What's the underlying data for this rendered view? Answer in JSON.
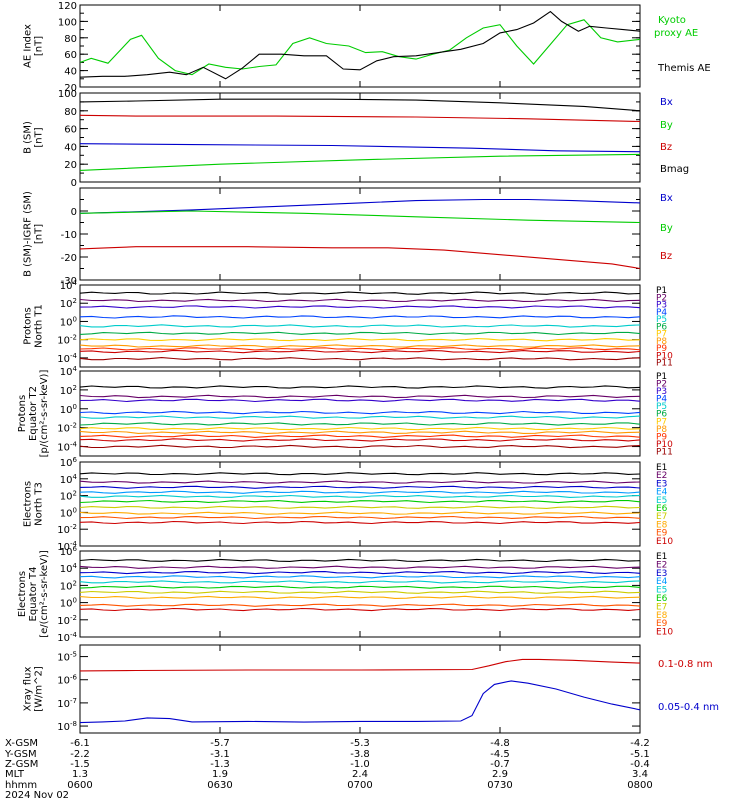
{
  "chart_data": [
    {
      "type": "line",
      "ylabel": [
        "AE Index",
        "[nT]"
      ],
      "ylim": [
        20,
        120
      ],
      "yticks": [
        20,
        40,
        60,
        80,
        100,
        120
      ],
      "series": [
        {
          "name": "Kyoto proxy AE",
          "legend": [
            "Kyoto",
            "proxy AE"
          ],
          "color": "#00cc00",
          "x": [
            0,
            0.02,
            0.05,
            0.09,
            0.11,
            0.14,
            0.17,
            0.2,
            0.23,
            0.26,
            0.29,
            0.32,
            0.35,
            0.38,
            0.41,
            0.44,
            0.48,
            0.51,
            0.54,
            0.57,
            0.6,
            0.63,
            0.66,
            0.69,
            0.72,
            0.75,
            0.78,
            0.81,
            0.84,
            0.87,
            0.9,
            0.93,
            0.96,
            1
          ],
          "y": [
            50,
            55,
            49,
            78,
            83,
            55,
            40,
            35,
            48,
            44,
            42,
            45,
            47,
            73,
            80,
            73,
            70,
            62,
            63,
            57,
            54,
            60,
            65,
            80,
            92,
            96,
            70,
            48,
            72,
            96,
            102,
            80,
            75,
            78
          ]
        },
        {
          "name": "Themis AE",
          "color": "#000000",
          "x": [
            0,
            0.04,
            0.08,
            0.12,
            0.16,
            0.19,
            0.22,
            0.26,
            0.29,
            0.32,
            0.36,
            0.4,
            0.44,
            0.47,
            0.5,
            0.53,
            0.56,
            0.6,
            0.64,
            0.68,
            0.72,
            0.75,
            0.78,
            0.81,
            0.84,
            0.86,
            0.89,
            0.91,
            0.94,
            0.97,
            1
          ],
          "y": [
            32,
            33,
            33,
            35,
            38,
            35,
            44,
            30,
            43,
            60,
            60,
            58,
            58,
            42,
            41,
            52,
            57,
            58,
            62,
            66,
            73,
            86,
            90,
            98,
            112,
            100,
            88,
            94,
            92,
            90,
            88
          ]
        }
      ]
    },
    {
      "type": "line",
      "ylabel": [
        "B (SM)",
        "[nT]"
      ],
      "ylim": [
        0,
        100
      ],
      "yticks": [
        0,
        20,
        40,
        60,
        80,
        100
      ],
      "series": [
        {
          "name": "Bx",
          "color": "#0000cc",
          "x": [
            0,
            0.2,
            0.45,
            0.7,
            0.85,
            1
          ],
          "y": [
            43,
            42,
            41,
            38,
            35,
            34
          ]
        },
        {
          "name": "By",
          "color": "#00cc00",
          "x": [
            0,
            0.25,
            0.5,
            0.75,
            1
          ],
          "y": [
            13,
            20,
            25,
            29,
            31
          ]
        },
        {
          "name": "Bz",
          "color": "#cc0000",
          "x": [
            0,
            0.1,
            0.35,
            0.6,
            0.8,
            1
          ],
          "y": [
            75,
            74,
            74,
            73,
            71,
            68
          ]
        },
        {
          "name": "Bmag",
          "color": "#000000",
          "x": [
            0,
            0.1,
            0.25,
            0.45,
            0.6,
            0.75,
            0.9,
            1
          ],
          "y": [
            90,
            91,
            93,
            93,
            92,
            89,
            85,
            80
          ]
        }
      ]
    },
    {
      "type": "line",
      "ylabel": [
        "B (SM)-IGRF (SM)",
        "[nT]"
      ],
      "ylim": [
        -30,
        10
      ],
      "yticks": [
        -30,
        -20,
        -10,
        0
      ],
      "series": [
        {
          "name": "Bx",
          "color": "#0000cc",
          "x": [
            0,
            0.08,
            0.2,
            0.35,
            0.5,
            0.6,
            0.72,
            0.8,
            0.88,
            1
          ],
          "y": [
            -1,
            -0.5,
            0.5,
            2,
            3.5,
            4.5,
            5,
            5,
            4.5,
            3.5
          ]
        },
        {
          "name": "By",
          "color": "#00cc00",
          "x": [
            0,
            0.2,
            0.4,
            0.6,
            0.8,
            1
          ],
          "y": [
            -1,
            0,
            -1,
            -2.5,
            -4,
            -5
          ]
        },
        {
          "name": "Bz",
          "color": "#cc0000",
          "x": [
            0,
            0.05,
            0.1,
            0.3,
            0.45,
            0.55,
            0.65,
            0.75,
            0.85,
            0.95,
            1
          ],
          "y": [
            -16.5,
            -16,
            -15.5,
            -15.5,
            -16,
            -16,
            -17,
            -19,
            -21,
            -23,
            -25
          ]
        }
      ]
    },
    {
      "type": "line",
      "ylabel": [
        "Protons",
        "North T1"
      ],
      "ylim_log10": [
        -5,
        4
      ],
      "yticks_log10": [
        -4,
        -2,
        0,
        2,
        4
      ],
      "series": [
        {
          "name": "P1",
          "color": "#000000",
          "log10": 3.1
        },
        {
          "name": "P2",
          "color": "#660066",
          "log10": 2.3
        },
        {
          "name": "P3",
          "color": "#3300cc",
          "log10": 1.6
        },
        {
          "name": "P4",
          "color": "#0044ff",
          "log10": 0.5
        },
        {
          "name": "P5",
          "color": "#00cccc",
          "log10": -0.5
        },
        {
          "name": "P6",
          "color": "#00aa44",
          "log10": -1.3
        },
        {
          "name": "P7",
          "color": "#ffcc00",
          "log10": -2.0
        },
        {
          "name": "P8",
          "color": "#ff9900",
          "log10": -2.7
        },
        {
          "name": "P9",
          "color": "#ff3300",
          "log10": -3.0
        },
        {
          "name": "P10",
          "color": "#cc0000",
          "log10": -3.3
        },
        {
          "name": "P11",
          "color": "#990000",
          "log10": -4.1
        }
      ]
    },
    {
      "type": "line",
      "ylabel": [
        "Protons",
        "Equator T2",
        "[p/(cm²-s-sr-keV)]"
      ],
      "ylim_log10": [
        -5,
        4
      ],
      "yticks_log10": [
        -4,
        -2,
        0,
        2,
        4
      ],
      "series": [
        {
          "name": "P1",
          "color": "#000000",
          "log10": 2.3
        },
        {
          "name": "P2",
          "color": "#660066",
          "log10": 1.3
        },
        {
          "name": "P3",
          "color": "#3300cc",
          "log10": 0.9
        },
        {
          "name": "P4",
          "color": "#0044ff",
          "log10": -0.4
        },
        {
          "name": "P5",
          "color": "#00cccc",
          "log10": -0.9
        },
        {
          "name": "P6",
          "color": "#00aa44",
          "log10": -1.6
        },
        {
          "name": "P7",
          "color": "#ffcc00",
          "log10": -2.1
        },
        {
          "name": "P8",
          "color": "#ff9900",
          "log10": -2.5
        },
        {
          "name": "P9",
          "color": "#ff3300",
          "log10": -2.9
        },
        {
          "name": "P10",
          "color": "#cc0000",
          "log10": -3.3
        },
        {
          "name": "P11",
          "color": "#990000",
          "log10": -4.0
        }
      ]
    },
    {
      "type": "line",
      "ylabel": [
        "Electrons",
        "North T3"
      ],
      "ylim_log10": [
        -4,
        6
      ],
      "yticks_log10": [
        -4,
        -2,
        0,
        2,
        4,
        6
      ],
      "series": [
        {
          "name": "E1",
          "color": "#000000",
          "log10": 4.6
        },
        {
          "name": "E2",
          "color": "#660066",
          "log10": 3.6
        },
        {
          "name": "E3",
          "color": "#0000cc",
          "log10": 3.0
        },
        {
          "name": "E4",
          "color": "#0099ff",
          "log10": 2.4
        },
        {
          "name": "E5",
          "color": "#00cccc",
          "log10": 1.9
        },
        {
          "name": "E6",
          "color": "#00cc00",
          "log10": 1.3
        },
        {
          "name": "E7",
          "color": "#cccc00",
          "log10": 0.6
        },
        {
          "name": "E8",
          "color": "#ffaa00",
          "log10": -0.1
        },
        {
          "name": "E9",
          "color": "#ff5500",
          "log10": -0.6
        },
        {
          "name": "E10",
          "color": "#cc0000",
          "log10": -1.2
        }
      ]
    },
    {
      "type": "line",
      "ylabel": [
        "Electrons",
        "Equator T4",
        "[e/(cm²-s-sr-keV)]"
      ],
      "ylim_log10": [
        -4,
        6
      ],
      "yticks_log10": [
        -4,
        -2,
        0,
        2,
        4,
        6
      ],
      "series": [
        {
          "name": "E1",
          "color": "#000000",
          "log10": 4.9
        },
        {
          "name": "E2",
          "color": "#660066",
          "log10": 4.1
        },
        {
          "name": "E3",
          "color": "#0000cc",
          "log10": 3.5
        },
        {
          "name": "E4",
          "color": "#0099ff",
          "log10": 3.0
        },
        {
          "name": "E5",
          "color": "#00cccc",
          "log10": 2.4
        },
        {
          "name": "E6",
          "color": "#00cc00",
          "log10": 1.8
        },
        {
          "name": "E7",
          "color": "#cccc00",
          "log10": 1.2
        },
        {
          "name": "E8",
          "color": "#ffaa00",
          "log10": 0.6
        },
        {
          "name": "E9",
          "color": "#ff5500",
          "log10": -0.3
        },
        {
          "name": "E10",
          "color": "#cc0000",
          "log10": -0.8
        }
      ]
    },
    {
      "type": "line",
      "ylabel": [
        "Xray flux",
        "[W/m^2]"
      ],
      "ylim_log10": [
        -8.3,
        -4.5
      ],
      "yticks_log10": [
        -8,
        -7,
        -6,
        -5
      ],
      "series": [
        {
          "name": "0.1-0.8 nm",
          "color": "#cc0000",
          "x": [
            0,
            0.1,
            0.3,
            0.5,
            0.7,
            0.73,
            0.76,
            0.79,
            0.82,
            0.88,
            0.95,
            1
          ],
          "log10": [
            -5.62,
            -5.6,
            -5.58,
            -5.58,
            -5.56,
            -5.4,
            -5.22,
            -5.12,
            -5.12,
            -5.16,
            -5.24,
            -5.28
          ]
        },
        {
          "name": "0.05-0.4 nm",
          "color": "#0000cc",
          "x": [
            0,
            0.04,
            0.08,
            0.12,
            0.16,
            0.2,
            0.3,
            0.4,
            0.5,
            0.6,
            0.68,
            0.7,
            0.72,
            0.74,
            0.77,
            0.8,
            0.85,
            0.9,
            0.95,
            1
          ],
          "log10": [
            -7.85,
            -7.82,
            -7.78,
            -7.65,
            -7.68,
            -7.82,
            -7.8,
            -7.83,
            -7.8,
            -7.8,
            -7.78,
            -7.55,
            -6.6,
            -6.2,
            -6.05,
            -6.15,
            -6.4,
            -6.75,
            -7.05,
            -7.3
          ]
        }
      ]
    }
  ],
  "x_axis": {
    "row_labels": [
      "X-GSM",
      "Y-GSM",
      "Z-GSM",
      "MLT",
      "hhmm"
    ],
    "date": "2024 Nov 02",
    "ticks": [
      {
        "values": [
          "-6.1",
          "-2.2",
          "-1.5",
          "1.3",
          "0600"
        ]
      },
      {
        "values": [
          "-5.7",
          "-3.1",
          "-1.3",
          "1.9",
          "0630"
        ]
      },
      {
        "values": [
          "-5.3",
          "-3.8",
          "-1.0",
          "2.4",
          "0700"
        ]
      },
      {
        "values": [
          "-4.8",
          "-4.5",
          "-0.7",
          "2.9",
          "0730"
        ]
      },
      {
        "values": [
          "-4.2",
          "-5.1",
          "-0.4",
          "3.4",
          "0800"
        ]
      }
    ]
  }
}
